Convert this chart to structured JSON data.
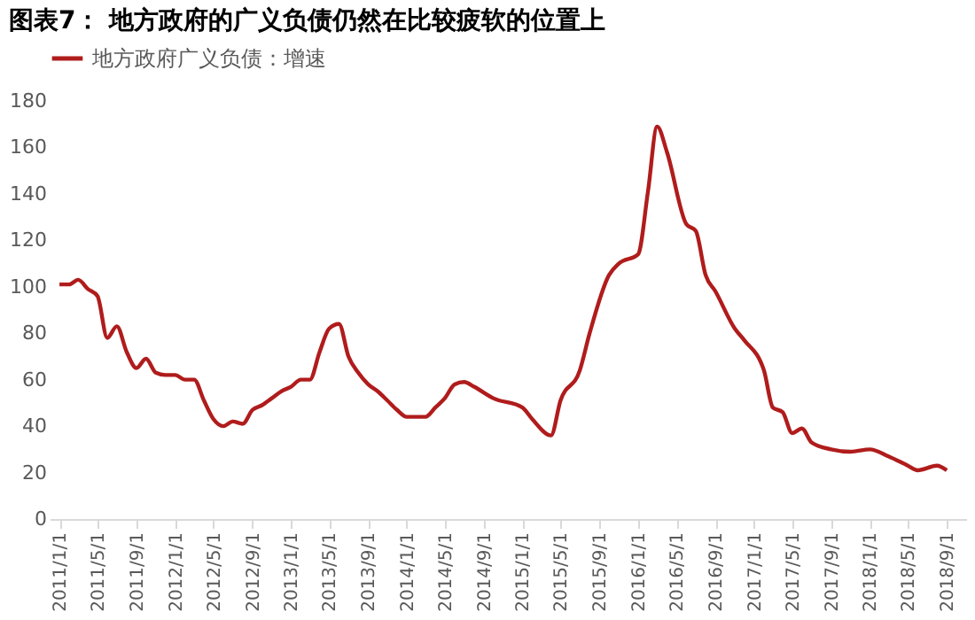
{
  "chart_data": {
    "type": "line",
    "title": "图表7：  地方政府的广义负债仍然在比较疲软的位置上",
    "x": [
      "2011-01",
      "2011-02",
      "2011-03",
      "2011-04",
      "2011-05",
      "2011-06",
      "2011-07",
      "2011-08",
      "2011-09",
      "2011-10",
      "2011-11",
      "2011-12",
      "2012-01",
      "2012-02",
      "2012-03",
      "2012-04",
      "2012-05",
      "2012-06",
      "2012-07",
      "2012-08",
      "2012-09",
      "2012-10",
      "2012-11",
      "2012-12",
      "2013-01",
      "2013-02",
      "2013-03",
      "2013-04",
      "2013-05",
      "2013-06",
      "2013-07",
      "2013-08",
      "2013-09",
      "2013-10",
      "2013-11",
      "2013-12",
      "2014-01",
      "2014-02",
      "2014-03",
      "2014-04",
      "2014-05",
      "2014-06",
      "2014-07",
      "2014-08",
      "2014-10",
      "2015-01",
      "2015-02",
      "2015-04",
      "2015-05",
      "2015-07",
      "2015-08",
      "2015-10",
      "2015-11",
      "2016-01",
      "2016-02",
      "2016-03",
      "2016-04",
      "2016-06",
      "2016-07",
      "2016-08",
      "2016-09",
      "2016-11",
      "2016-12",
      "2017-02",
      "2017-03",
      "2017-04",
      "2017-05",
      "2017-06",
      "2017-07",
      "2017-09",
      "2017-11",
      "2018-01",
      "2018-03",
      "2018-05",
      "2018-06",
      "2018-08",
      "2018-09"
    ],
    "series": [
      {
        "name": "地方政府广义负债：增速",
        "color": "#b01c1c",
        "values": [
          101,
          101,
          103,
          99,
          96,
          78,
          83,
          72,
          65,
          69,
          63,
          62,
          62,
          60,
          60,
          51,
          43,
          40,
          42,
          41,
          47,
          49,
          52,
          55,
          57,
          60,
          60,
          72,
          82,
          84,
          70,
          63,
          58,
          55,
          51,
          47,
          44,
          44,
          44,
          48,
          52,
          58,
          59,
          57,
          52,
          48,
          43,
          36,
          51,
          64,
          80,
          105,
          110,
          114,
          141,
          169,
          158,
          127,
          124,
          105,
          98,
          82,
          77,
          64,
          48,
          46,
          37,
          39,
          33,
          30,
          29,
          30,
          27,
          23,
          21,
          23,
          21
        ]
      }
    ],
    "xlim": [
      "2010-12",
      "2018-11"
    ],
    "xticks": [
      {
        "value": "2011-01",
        "label": "2011/1/1"
      },
      {
        "value": "2011-05",
        "label": "2011/5/1"
      },
      {
        "value": "2011-09",
        "label": "2011/9/1"
      },
      {
        "value": "2012-01",
        "label": "2012/1/1"
      },
      {
        "value": "2012-05",
        "label": "2012/5/1"
      },
      {
        "value": "2012-09",
        "label": "2012/9/1"
      },
      {
        "value": "2013-01",
        "label": "2013/1/1"
      },
      {
        "value": "2013-05",
        "label": "2013/5/1"
      },
      {
        "value": "2013-09",
        "label": "2013/9/1"
      },
      {
        "value": "2014-01",
        "label": "2014/1/1"
      },
      {
        "value": "2014-05",
        "label": "2014/5/1"
      },
      {
        "value": "2014-09",
        "label": "2014/9/1"
      },
      {
        "value": "2015-01",
        "label": "2015/1/1"
      },
      {
        "value": "2015-05",
        "label": "2015/5/1"
      },
      {
        "value": "2015-09",
        "label": "2015/9/1"
      },
      {
        "value": "2016-01",
        "label": "2016/1/1"
      },
      {
        "value": "2016-05",
        "label": "2016/5/1"
      },
      {
        "value": "2016-09",
        "label": "2016/9/1"
      },
      {
        "value": "2017-01",
        "label": "2017/1/1"
      },
      {
        "value": "2017-05",
        "label": "2017/5/1"
      },
      {
        "value": "2017-09",
        "label": "2017/9/1"
      },
      {
        "value": "2018-01",
        "label": "2018/1/1"
      },
      {
        "value": "2018-05",
        "label": "2018/5/1"
      },
      {
        "value": "2018-09",
        "label": "2018/9/1"
      }
    ],
    "ylim": [
      0,
      180
    ],
    "yticks": [
      0,
      20,
      40,
      60,
      80,
      100,
      120,
      140,
      160,
      180
    ],
    "grid": false,
    "legend": "top",
    "marker": "none",
    "line_style": "solid"
  }
}
